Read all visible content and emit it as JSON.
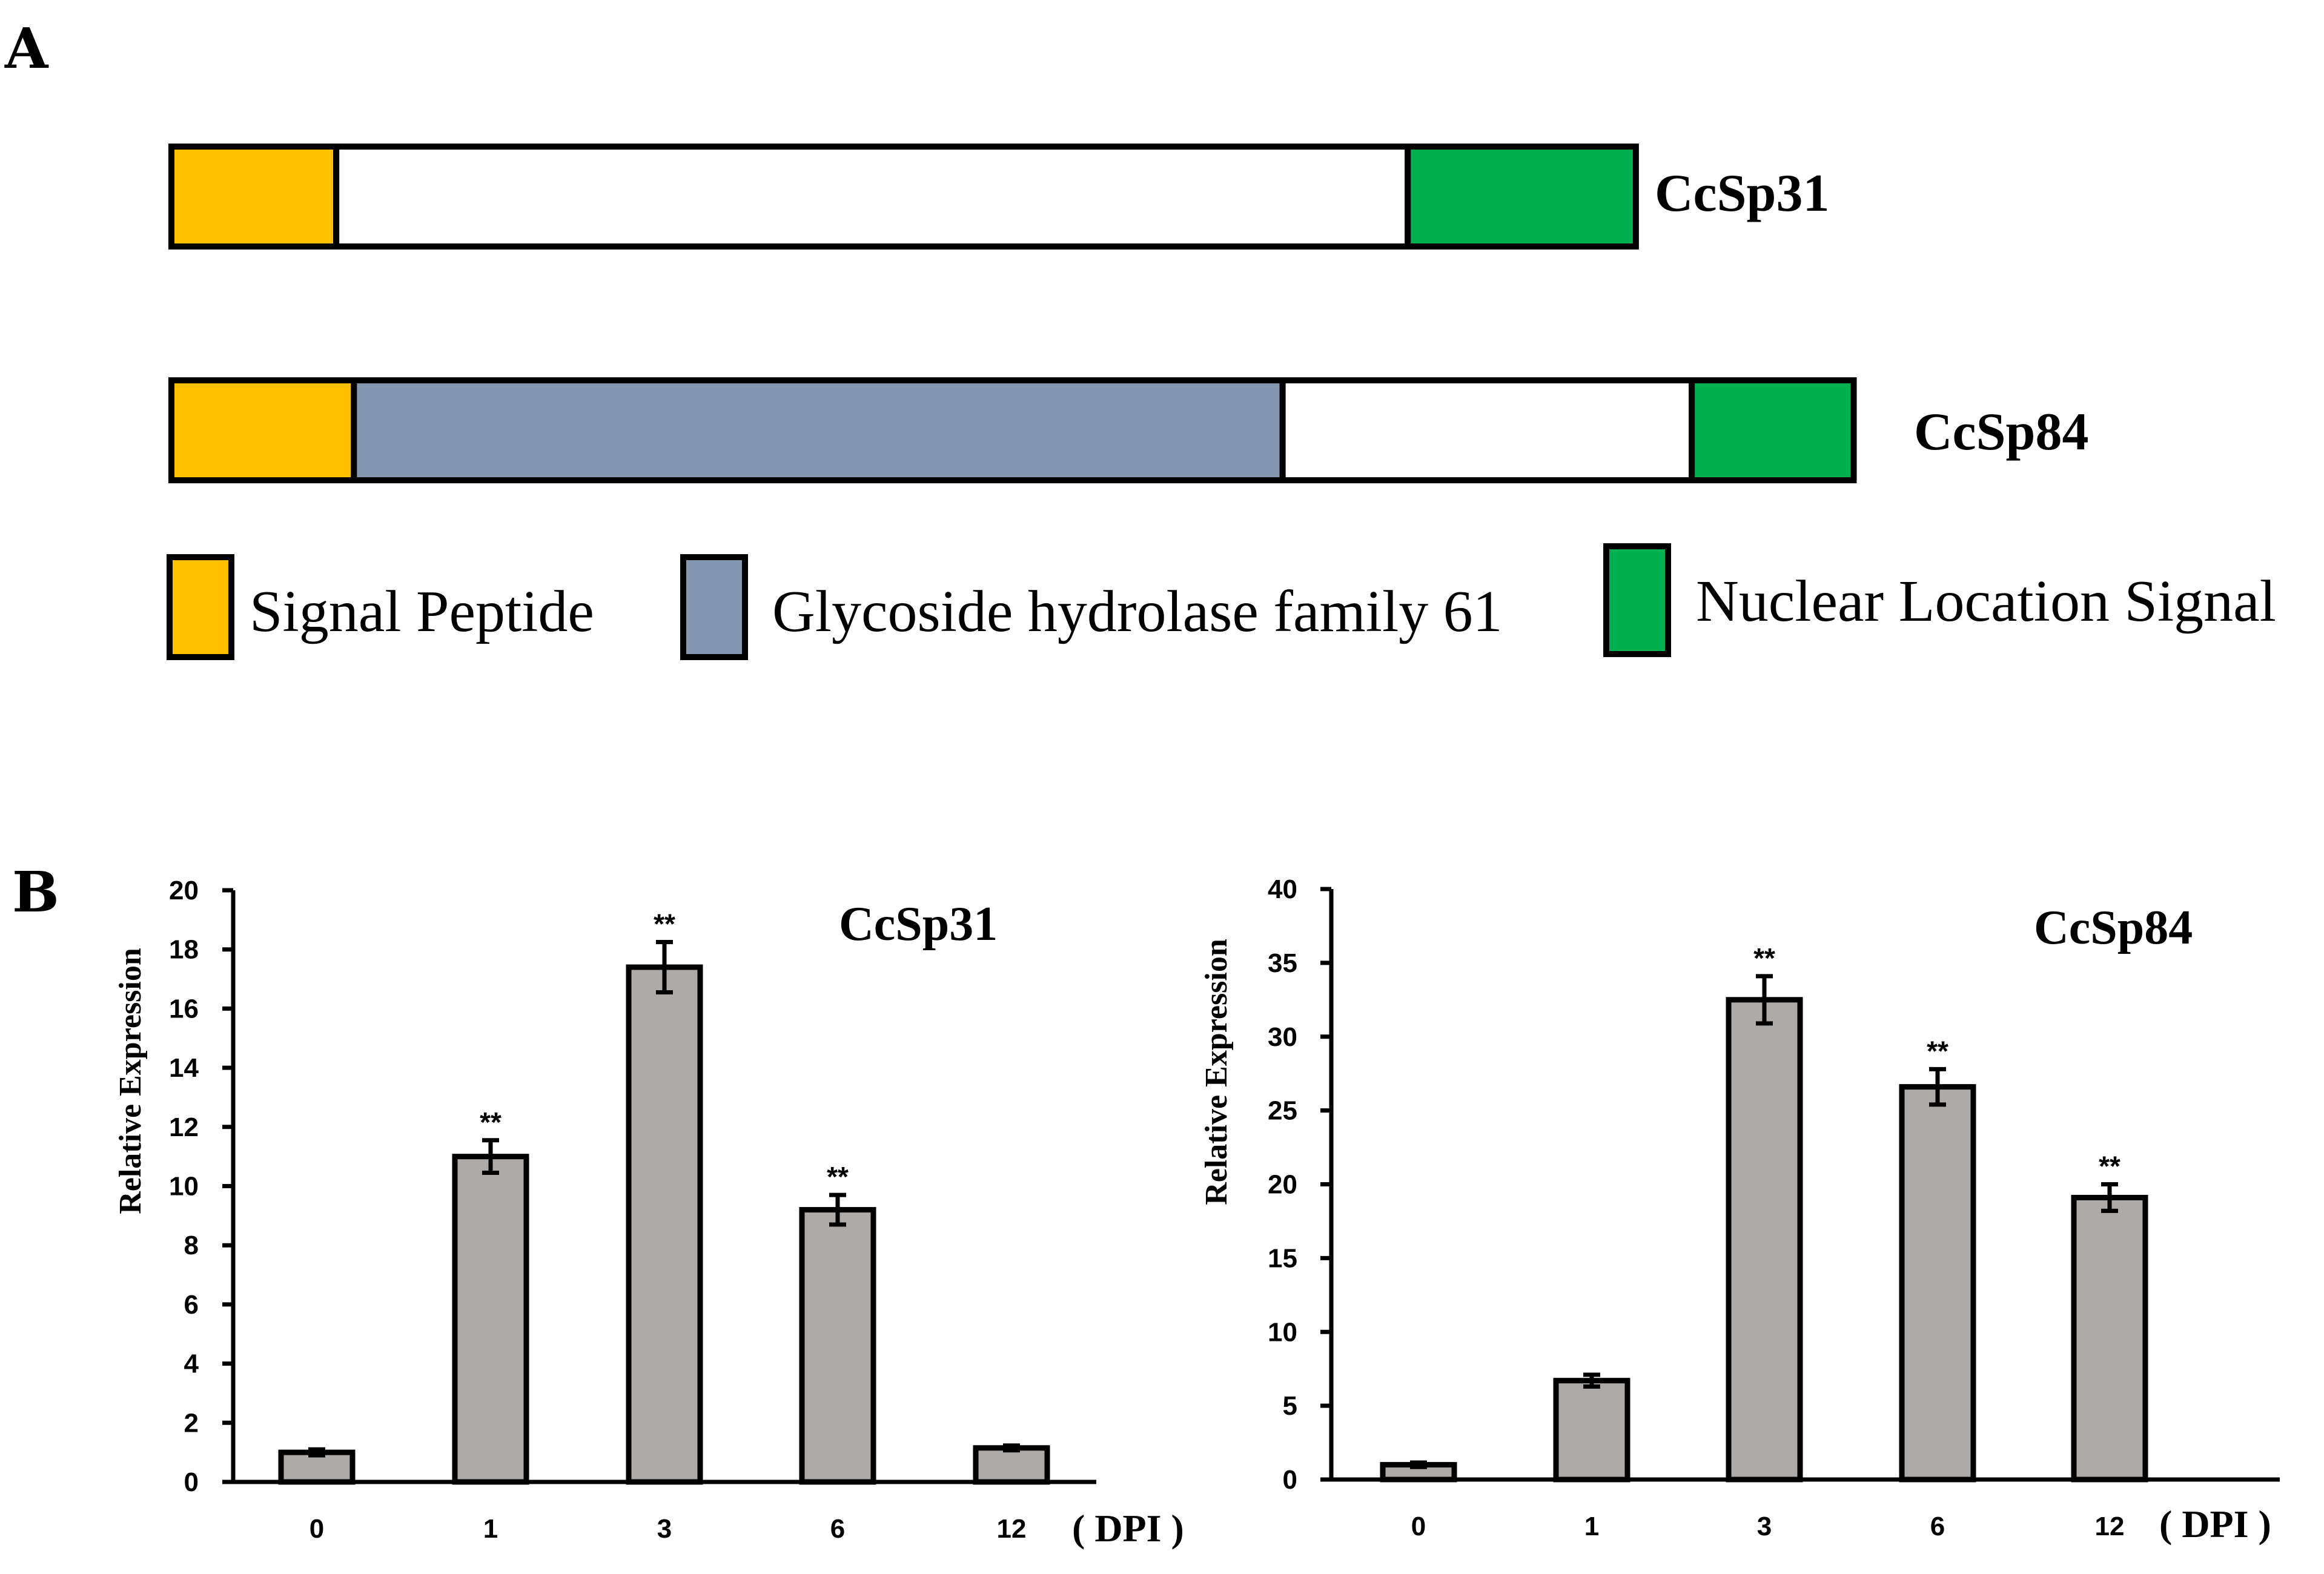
{
  "panelA": {
    "letter": "A",
    "proteins": [
      {
        "name": "CcSp31",
        "domains": [
          {
            "type": "signal",
            "start": 0,
            "end": 112
          },
          {
            "type": "none",
            "start": 112,
            "end": 840
          },
          {
            "type": "nls",
            "start": 840,
            "end": 995
          }
        ]
      },
      {
        "name": "CcSp84",
        "domains": [
          {
            "type": "signal",
            "start": 0,
            "end": 124
          },
          {
            "type": "gh61",
            "start": 124,
            "end": 755
          },
          {
            "type": "none",
            "start": 755,
            "end": 1033
          },
          {
            "type": "nls",
            "start": 1033,
            "end": 1143
          }
        ]
      }
    ],
    "legend": [
      {
        "type": "signal",
        "label": "Signal Peptide"
      },
      {
        "type": "gh61",
        "label": "Glycoside hydrolase family 61"
      },
      {
        "type": "nls",
        "label": "Nuclear Location Signal"
      }
    ],
    "colors": {
      "signal": "#ffc000",
      "gh61": "#8497b0",
      "nls": "#00b050",
      "none": "#ffffff"
    }
  },
  "panelB": {
    "letter": "B"
  },
  "chart_data": [
    {
      "type": "bar",
      "title": "CcSp31",
      "xlabel": "",
      "x_unit": "( DPI )",
      "ylabel": "Relative Expression",
      "categories": [
        "0",
        "1",
        "3",
        "6",
        "12"
      ],
      "values": [
        1.0,
        11.0,
        17.4,
        9.2,
        1.15
      ],
      "errors": [
        0.1,
        0.55,
        0.85,
        0.5,
        0.08
      ],
      "annotations": [
        "",
        "**",
        "**",
        "**",
        ""
      ],
      "ylim": [
        0,
        20
      ],
      "yticks": [
        "0",
        "2",
        "4",
        "6",
        "8",
        "10",
        "12",
        "14",
        "16",
        "18",
        "20"
      ],
      "bar_color": "#aeaaa7"
    },
    {
      "type": "bar",
      "title": "CcSp84",
      "xlabel": "",
      "x_unit": "( DPI )",
      "ylabel": "Relative Expression",
      "categories": [
        "0",
        "1",
        "3",
        "6",
        "12"
      ],
      "values": [
        1.0,
        6.7,
        32.5,
        26.6,
        19.1
      ],
      "errors": [
        0.15,
        0.4,
        1.6,
        1.2,
        0.9
      ],
      "annotations": [
        "",
        "",
        "**",
        "**",
        "**"
      ],
      "ylim": [
        0,
        40
      ],
      "yticks": [
        "0",
        "5",
        "10",
        "15",
        "20",
        "25",
        "30",
        "35",
        "40"
      ],
      "bar_color": "#aeaaa7"
    }
  ]
}
